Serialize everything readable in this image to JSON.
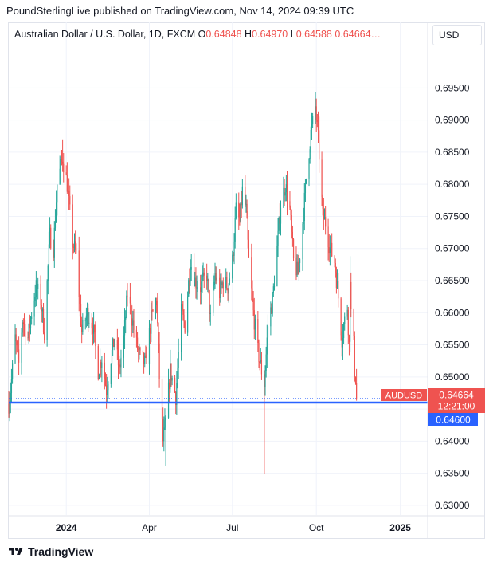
{
  "header": {
    "publisher_line": "PoundSterlingLive published on TradingView.com, Nov 14, 2024 09:39 UTC"
  },
  "legend": {
    "symbol": "Australian Dollar / U.S. Dollar, 1D, FXCM",
    "open_label": "O",
    "open": "0.64848",
    "high_label": "H",
    "high": "0.64970",
    "low_label": "L",
    "low": "0.64588",
    "close": "0.64664…"
  },
  "currency_button": "USD",
  "price_tags": {
    "symbol": "AUDUSD",
    "last_price": "0.64664",
    "countdown": "12:21:00",
    "line_price": "0.64600"
  },
  "footer": {
    "brand": "TradingView",
    "logo_icon": "tradingview-logo-icon"
  },
  "colors": {
    "up": "#26a69a",
    "down": "#ef5350",
    "hline": "#2962ff",
    "grid": "#f0f3fa"
  },
  "chart_data": {
    "type": "candlestick",
    "symbol": "AUDUSD",
    "timeframe": "1D",
    "y_axis": {
      "ticks": [
        0.63,
        0.635,
        0.64,
        0.645,
        0.65,
        0.655,
        0.66,
        0.665,
        0.67,
        0.675,
        0.68,
        0.685,
        0.69,
        0.695
      ],
      "tick_labels": [
        "0.63000",
        "0.63500",
        "0.64000",
        "0.64500",
        "0.65000",
        "0.65500",
        "0.66000",
        "0.66500",
        "0.67000",
        "0.67500",
        "0.68000",
        "0.68500",
        "0.69000",
        "0.69500"
      ],
      "range": [
        0.6285,
        0.7015
      ]
    },
    "x_axis": {
      "tick_labels": [
        "2024",
        "Apr",
        "Jul",
        "Oct",
        "2025"
      ],
      "tick_dates": [
        "2024-01-01",
        "2024-04-01",
        "2024-07-01",
        "2024-10-01",
        "2025-01-01"
      ],
      "range": [
        "2023-10-30",
        "2025-01-31"
      ]
    },
    "horizontal_line": 0.646,
    "last_price": 0.64664,
    "close_path": [
      [
        "2023-10-30",
        0.6458
      ],
      [
        "2023-11-01",
        0.648
      ],
      [
        "2023-11-06",
        0.656
      ],
      [
        "2023-11-10",
        0.652
      ],
      [
        "2023-11-14",
        0.659
      ],
      [
        "2023-11-20",
        0.656
      ],
      [
        "2023-11-24",
        0.66
      ],
      [
        "2023-11-29",
        0.664
      ],
      [
        "2023-12-04",
        0.662
      ],
      [
        "2023-12-08",
        0.657
      ],
      [
        "2023-12-14",
        0.672
      ],
      [
        "2023-12-18",
        0.67
      ],
      [
        "2023-12-22",
        0.68
      ],
      [
        "2023-12-28",
        0.684
      ],
      [
        "2024-01-02",
        0.68
      ],
      [
        "2024-01-08",
        0.671
      ],
      [
        "2024-01-12",
        0.669
      ],
      [
        "2024-01-18",
        0.657
      ],
      [
        "2024-01-24",
        0.66
      ],
      [
        "2024-01-30",
        0.658
      ],
      [
        "2024-02-05",
        0.651
      ],
      [
        "2024-02-09",
        0.653
      ],
      [
        "2024-02-14",
        0.648
      ],
      [
        "2024-02-19",
        0.653
      ],
      [
        "2024-02-23",
        0.656
      ],
      [
        "2024-02-28",
        0.651
      ],
      [
        "2024-03-04",
        0.656
      ],
      [
        "2024-03-08",
        0.663
      ],
      [
        "2024-03-12",
        0.66
      ],
      [
        "2024-03-18",
        0.655
      ],
      [
        "2024-03-22",
        0.653
      ],
      [
        "2024-03-28",
        0.652
      ],
      [
        "2024-04-03",
        0.659
      ],
      [
        "2024-04-09",
        0.662
      ],
      [
        "2024-04-12",
        0.65
      ],
      [
        "2024-04-16",
        0.64
      ],
      [
        "2024-04-19",
        0.643
      ],
      [
        "2024-04-24",
        0.651
      ],
      [
        "2024-04-30",
        0.647
      ],
      [
        "2024-05-06",
        0.66
      ],
      [
        "2024-05-10",
        0.658
      ],
      [
        "2024-05-16",
        0.668
      ],
      [
        "2024-05-21",
        0.665
      ],
      [
        "2024-05-27",
        0.664
      ],
      [
        "2024-06-03",
        0.666
      ],
      [
        "2024-06-07",
        0.659
      ],
      [
        "2024-06-12",
        0.666
      ],
      [
        "2024-06-17",
        0.663
      ],
      [
        "2024-06-21",
        0.665
      ],
      [
        "2024-06-26",
        0.664
      ],
      [
        "2024-07-01",
        0.668
      ],
      [
        "2024-07-05",
        0.676
      ],
      [
        "2024-07-09",
        0.674
      ],
      [
        "2024-07-12",
        0.679
      ],
      [
        "2024-07-16",
        0.676
      ],
      [
        "2024-07-19",
        0.668
      ],
      [
        "2024-07-24",
        0.66
      ],
      [
        "2024-07-29",
        0.654
      ],
      [
        "2024-08-02",
        0.651
      ],
      [
        "2024-08-05",
        0.649
      ],
      [
        "2024-08-09",
        0.658
      ],
      [
        "2024-08-14",
        0.662
      ],
      [
        "2024-08-19",
        0.67
      ],
      [
        "2024-08-23",
        0.677
      ],
      [
        "2024-08-28",
        0.68
      ],
      [
        "2024-09-02",
        0.676
      ],
      [
        "2024-09-06",
        0.668
      ],
      [
        "2024-09-11",
        0.666
      ],
      [
        "2024-09-16",
        0.674
      ],
      [
        "2024-09-20",
        0.681
      ],
      [
        "2024-09-25",
        0.688
      ],
      [
        "2024-09-30",
        0.692
      ],
      [
        "2024-10-03",
        0.687
      ],
      [
        "2024-10-08",
        0.675
      ],
      [
        "2024-10-11",
        0.674
      ],
      [
        "2024-10-16",
        0.67
      ],
      [
        "2024-10-21",
        0.668
      ],
      [
        "2024-10-24",
        0.664
      ],
      [
        "2024-10-29",
        0.656
      ],
      [
        "2024-10-31",
        0.658
      ],
      [
        "2024-11-04",
        0.661
      ],
      [
        "2024-11-06",
        0.655
      ],
      [
        "2024-11-07",
        0.666
      ],
      [
        "2024-11-08",
        0.66
      ],
      [
        "2024-11-11",
        0.655
      ],
      [
        "2024-11-12",
        0.651
      ],
      [
        "2024-11-13",
        0.65
      ],
      [
        "2024-11-14",
        0.64664
      ]
    ],
    "marked_extremes": [
      [
        "2023-12-28",
        0.687,
        "high"
      ],
      [
        "2024-04-19",
        0.6362,
        "low"
      ],
      [
        "2024-08-05",
        0.6349,
        "low"
      ],
      [
        "2024-09-30",
        0.6943,
        "high"
      ],
      [
        "2024-11-07",
        0.6688,
        "high"
      ]
    ]
  }
}
